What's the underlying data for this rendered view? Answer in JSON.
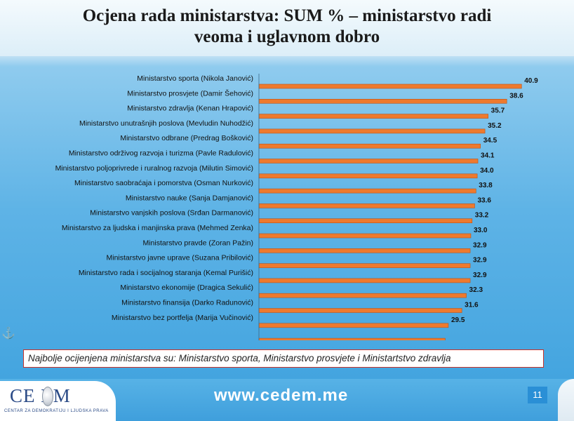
{
  "title": "Ocjena rada ministarstva: SUM % – ministarstvo radi veoma i uglavnom dobro",
  "title_line1": "Ocjena rada ministarstva: SUM % – ministarstvo radi",
  "title_line2": "veoma i uglavnom dobro",
  "note": "Najbolje ocijenjena ministarstva su: Ministarstvo sporta, Ministarstvo prosvjete i Ministartstvo zdravlja",
  "footer": {
    "logo_text": "CE  EM",
    "logo_sub": "CENTAR ZA DEMOKRATIJU I LJUDSKA PRAVA",
    "url": "www.cedem.me",
    "page_number": "11"
  },
  "colors": {
    "bar": "#ee7a2e",
    "bar_edge": "#b9531a",
    "note_border": "#c8322a"
  },
  "chart_data": {
    "type": "bar",
    "orientation": "horizontal",
    "categories": [
      "Ministarstvo sporta (Nikola Janović)",
      "Ministarstvo prosvjete (Damir Šehović)",
      "Ministarstvo zdravlja (Kenan Hrapović)",
      "Ministarstvo unutrašnjih poslova (Mevludin Nuhodžić)",
      "Ministarstvo odbrane (Predrag Bošković)",
      "Ministarstvo održivog razvoja i turizma (Pavle Radulović)",
      "Ministarstvo poljoprivrede i ruralnog razvoja (Milutin Simović)",
      "Ministarstvo saobraćaja i pomorstva (Osman Nurković)",
      "Ministarstvo nauke (Sanja Damjanović)",
      "Ministarstvo vanjskih poslova (Srđan Darmanović)",
      "Ministarstvo za ljudska i manjinska prava (Mehmed Zenka)",
      "Ministarstvo pravde (Zoran Pažin)",
      "Ministarstvo javne uprave (Suzana Pribilović)",
      "Ministarstvo rada i socijalnog staranja (Kemal Purišić)",
      "Ministarstvo ekonomije (Dragica Sekulić)",
      "Ministarstvo finansija (Darko Radunović)",
      "Ministarstvo bez portfelja (Marija Vučinović)",
      ""
    ],
    "values": [
      40.9,
      38.6,
      35.7,
      35.2,
      34.5,
      34.1,
      34.0,
      33.8,
      33.6,
      33.2,
      33.0,
      32.9,
      32.9,
      32.9,
      32.3,
      31.6,
      29.5,
      null
    ],
    "value_labels": [
      "40.9",
      "38.6",
      "35.7",
      "35.2",
      "34.5",
      "34.1",
      "34.0",
      "33.8",
      "33.6",
      "33.2",
      "33.0",
      "32.9",
      "32.9",
      "32.9",
      "32.3",
      "31.6",
      "29.5",
      ""
    ],
    "trailing_bar_value": 29.0,
    "xlim": [
      0,
      42
    ],
    "grid": false,
    "legend": "none"
  }
}
